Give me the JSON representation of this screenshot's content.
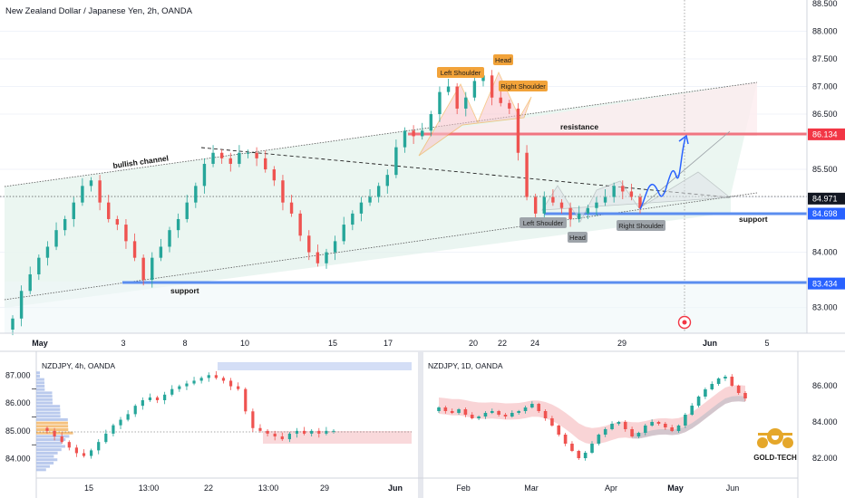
{
  "chart_data": [
    {
      "type": "candlestick",
      "title": "New Zealand Dollar / Japanese Yen, 2h, OANDA",
      "x_ticks": [
        "May",
        "3",
        "8",
        "10",
        "15",
        "17",
        "Jun",
        "20",
        "22",
        "24",
        "29",
        "Jun",
        "5"
      ],
      "y_ticks": [
        "88.000",
        "87.500",
        "87.000",
        "86.500",
        "85.500",
        "85.000",
        "84.000",
        "83.000"
      ],
      "y_top_label": "88.500",
      "ylim": [
        82.6,
        88.5
      ],
      "price_tags": [
        {
          "value": 86.134,
          "label": "86.134",
          "color": "#f23645"
        },
        {
          "value": 84.971,
          "label": "84.971",
          "color": "#131722"
        },
        {
          "value": 84.698,
          "label": "84.698",
          "color": "#2962ff"
        },
        {
          "value": 83.434,
          "label": "83.434",
          "color": "#2962ff"
        }
      ],
      "annotations": {
        "top_pattern": [
          "Left Shoulder",
          "Head",
          "Right Shoulder"
        ],
        "bottom_pattern": [
          "Left Shoulder",
          "Head",
          "Right Shoulder"
        ],
        "bullish_channel": "bullish channel",
        "resistance": "resistance",
        "support_right": "support",
        "support_left": "support"
      },
      "levels": {
        "resistance": 86.134,
        "support_upper": 84.698,
        "support_lower": 83.434,
        "last": 84.971
      },
      "series_close": [
        82.8,
        83.3,
        83.6,
        83.9,
        84.1,
        84.4,
        84.6,
        84.9,
        85.2,
        85.3,
        84.9,
        84.6,
        84.5,
        84.2,
        83.9,
        83.5,
        83.9,
        84.1,
        84.4,
        84.6,
        84.9,
        85.2,
        85.6,
        85.8,
        85.7,
        85.6,
        85.8,
        85.8,
        85.7,
        85.5,
        85.3,
        84.9,
        84.7,
        84.3,
        84.0,
        83.8,
        84.0,
        84.2,
        84.5,
        84.7,
        84.9,
        85.0,
        85.2,
        85.4,
        85.9,
        86.2,
        86.1,
        86.2,
        86.5,
        86.9,
        87.0,
        86.6,
        86.8,
        87.1,
        87.2,
        86.8,
        86.7,
        86.6,
        85.8,
        85.0,
        84.7,
        85.0,
        84.9,
        84.8,
        84.6,
        84.7,
        84.8,
        84.9,
        85.0,
        85.2,
        85.1,
        85.0,
        84.8
      ]
    },
    {
      "type": "candlestick",
      "title": "NZDJPY, 4h, OANDA",
      "x_ticks": [
        "15",
        "13:00",
        "22",
        "13:00",
        "29",
        "Jun"
      ],
      "y_ticks": [
        "87.000",
        "86.000",
        "85.000",
        "84.000"
      ],
      "y_minor_ticks": [
        "86.500",
        "85.500",
        "84.500"
      ],
      "ylim": [
        83.5,
        87.4
      ],
      "series_close": [
        85.0,
        84.8,
        84.6,
        84.4,
        84.2,
        84.1,
        84.3,
        84.6,
        84.9,
        85.2,
        85.4,
        85.6,
        85.9,
        86.1,
        86.2,
        86.1,
        86.3,
        86.5,
        86.6,
        86.7,
        86.8,
        86.9,
        87.0,
        86.9,
        86.8,
        86.6,
        86.5,
        85.7,
        85.1,
        85.0,
        84.9,
        84.8,
        84.7,
        84.9,
        85.0,
        84.9,
        85.0,
        84.9,
        85.0,
        85.0
      ]
    },
    {
      "type": "candlestick",
      "title": "NZDJPY, 1D, OANDA",
      "x_ticks": [
        "Feb",
        "Mar",
        "Apr",
        "May",
        "Jun"
      ],
      "y_ticks": [
        "86.000",
        "84.000",
        "82.000"
      ],
      "ylim": [
        81.2,
        87.2
      ],
      "series_close": [
        84.8,
        84.6,
        84.5,
        84.7,
        84.4,
        84.2,
        84.3,
        84.5,
        84.6,
        84.4,
        84.3,
        84.5,
        84.6,
        84.8,
        85.0,
        84.6,
        84.2,
        83.8,
        83.3,
        82.8,
        82.4,
        82.0,
        82.3,
        82.8,
        83.3,
        83.6,
        83.9,
        84.0,
        83.6,
        83.2,
        83.4,
        83.8,
        84.0,
        83.9,
        83.7,
        83.5,
        83.8,
        84.4,
        84.9,
        85.4,
        85.8,
        86.1,
        86.4,
        86.5,
        86.0,
        85.6,
        85.3
      ]
    }
  ],
  "logo": {
    "text": "GOLD-TECH"
  }
}
